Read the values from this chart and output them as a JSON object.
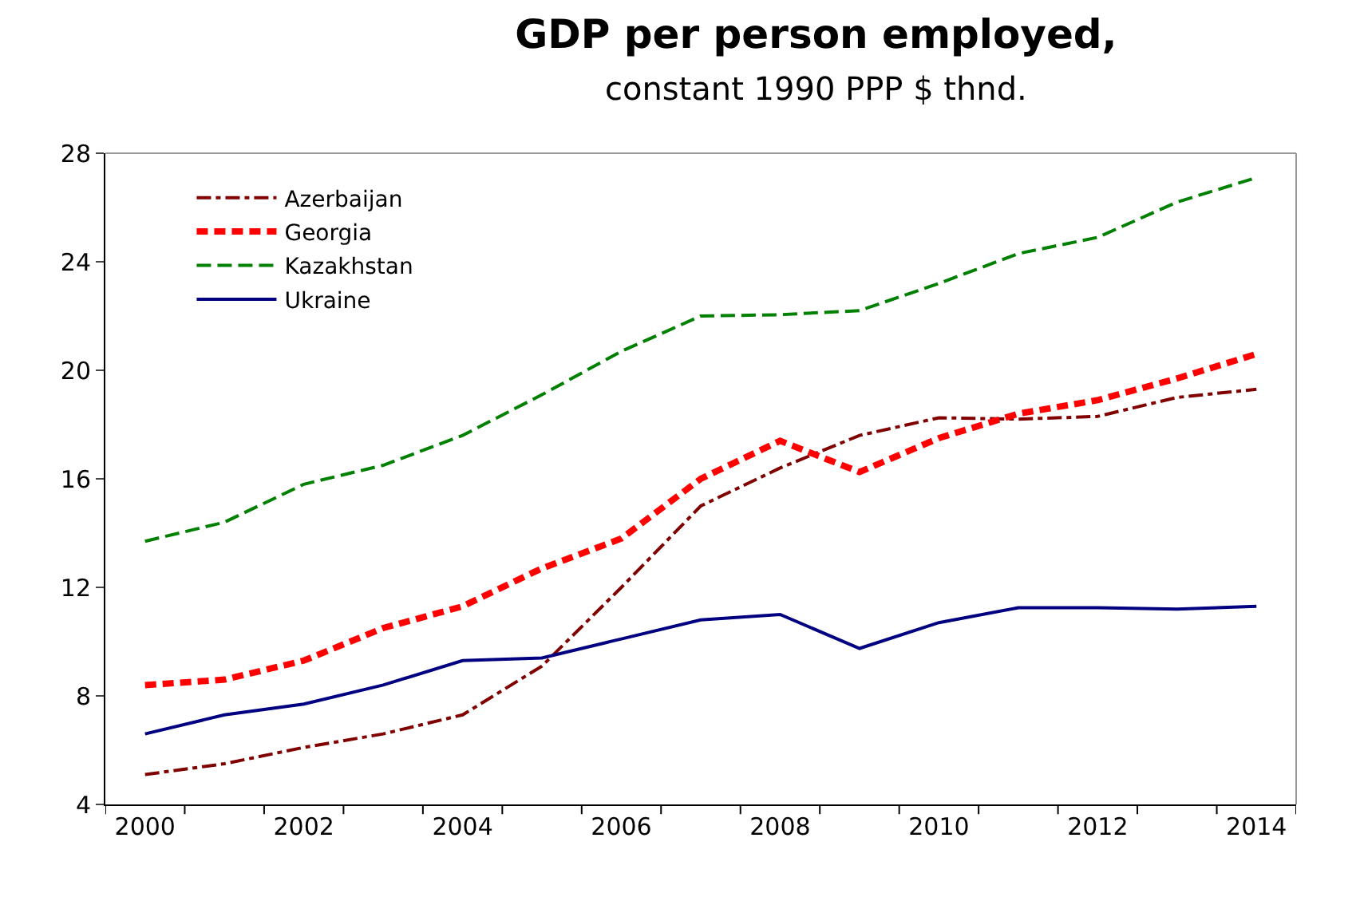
{
  "chart_data": {
    "type": "line",
    "title": "GDP per person employed,",
    "subtitle": "constant 1990 PPP $ thnd.",
    "categories": [
      "2000",
      null,
      "2002",
      null,
      "2004",
      null,
      "2006",
      null,
      "2008",
      null,
      "2010",
      null,
      "2012",
      null,
      "2014"
    ],
    "ylim": [
      4,
      28
    ],
    "yticks": [
      4,
      8,
      12,
      16,
      20,
      24,
      28
    ],
    "legend": "top left",
    "marker": "none",
    "series": [
      {
        "name": "Azerbaijan",
        "color": "#800000",
        "line_style": "dashdot",
        "values": [
          5.1,
          5.5,
          6.1,
          6.6,
          7.3,
          9.1,
          12.0,
          15.0,
          16.4,
          17.6,
          18.25,
          18.2,
          18.3,
          19.0,
          19.3
        ]
      },
      {
        "name": "Georgia",
        "color": "#ff0000",
        "line_style": "dashed",
        "values": [
          8.4,
          8.6,
          9.3,
          10.5,
          11.3,
          12.7,
          13.8,
          16.0,
          17.4,
          16.25,
          17.5,
          18.4,
          18.9,
          19.7,
          20.6
        ]
      },
      {
        "name": "Kazakhstan",
        "color": "#008000",
        "line_style": "longdash",
        "values": [
          13.7,
          14.4,
          15.8,
          16.5,
          17.6,
          19.1,
          20.7,
          22.0,
          22.05,
          22.2,
          23.2,
          24.3,
          24.9,
          26.2,
          27.1
        ]
      },
      {
        "name": "Ukraine",
        "color": "#000080",
        "line_style": "solid",
        "values": [
          6.6,
          7.3,
          7.7,
          8.4,
          9.3,
          9.4,
          10.1,
          10.8,
          11.0,
          9.75,
          10.7,
          11.25,
          11.25,
          11.2,
          11.3
        ]
      }
    ]
  }
}
